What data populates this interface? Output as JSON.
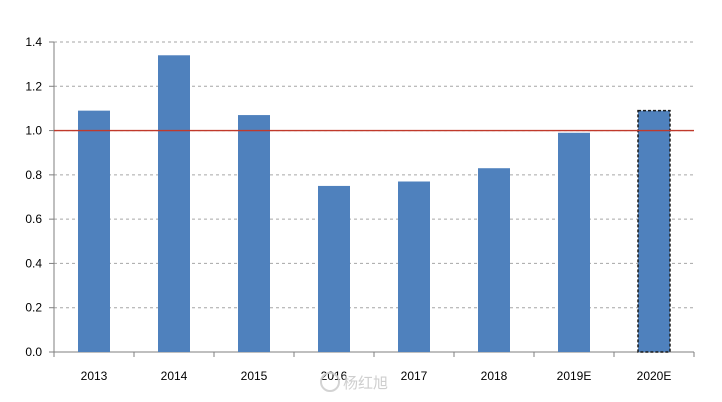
{
  "chart_data": {
    "type": "bar",
    "categories": [
      "2013",
      "2014",
      "2015",
      "2016",
      "2017",
      "2018",
      "2019E",
      "2020E"
    ],
    "values": [
      1.09,
      1.34,
      1.07,
      0.75,
      0.77,
      0.83,
      0.99,
      1.09
    ],
    "ylim": [
      0.0,
      1.4
    ],
    "yticks": [
      "0.0",
      "0.2",
      "0.4",
      "0.6",
      "0.8",
      "1.0",
      "1.2",
      "1.4"
    ],
    "grid": true,
    "reference_line": {
      "y": 1.0,
      "color": "#c0392b"
    },
    "estimated_categories": [
      "2020E"
    ],
    "colors": {
      "bar": "#4f81bd",
      "reference_line": "#c0392b",
      "grid": "#a6a6a6"
    }
  },
  "watermark": {
    "text": "杨红旭"
  }
}
